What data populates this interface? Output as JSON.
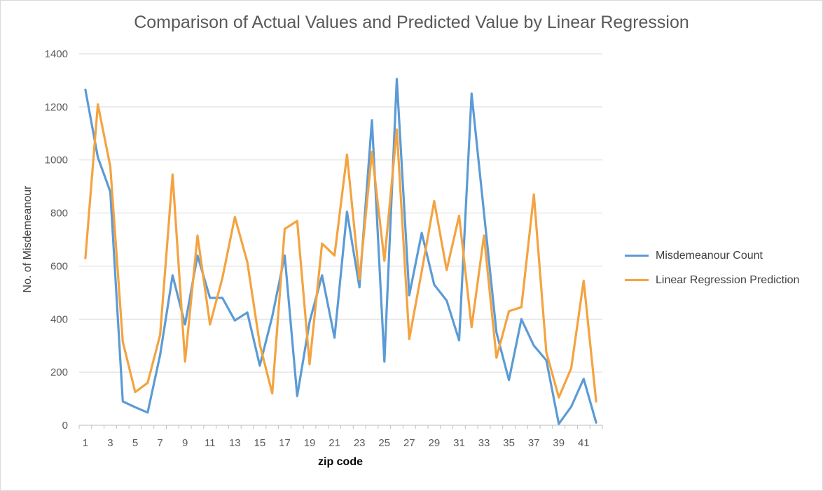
{
  "chart_data": {
    "type": "line",
    "title": "Comparison of Actual Values and Predicted Value by Linear Regression",
    "xlabel": "zip code",
    "ylabel": "No. of Misdemeanour",
    "ylim": [
      0,
      1400
    ],
    "yticks": [
      "0",
      "200",
      "400",
      "600",
      "800",
      "1000",
      "1200",
      "1400"
    ],
    "xticks": [
      "1",
      "3",
      "5",
      "7",
      "9",
      "11",
      "13",
      "15",
      "17",
      "19",
      "21",
      "23",
      "25",
      "27",
      "29",
      "31",
      "33",
      "35",
      "37",
      "39",
      "41"
    ],
    "x": [
      1,
      2,
      3,
      4,
      5,
      6,
      7,
      8,
      9,
      10,
      11,
      12,
      13,
      14,
      15,
      16,
      17,
      18,
      19,
      20,
      21,
      22,
      23,
      24,
      25,
      26,
      27,
      28,
      29,
      30,
      31,
      32,
      33,
      34,
      35,
      36,
      37,
      38,
      39,
      40,
      41,
      42
    ],
    "grid": true,
    "legend_position": "right",
    "series": [
      {
        "name": "Misdemeanour Count",
        "color": "#5B9BD5",
        "values": [
          1265,
          1010,
          880,
          90,
          68,
          48,
          265,
          565,
          380,
          640,
          480,
          480,
          395,
          425,
          225,
          410,
          640,
          110,
          390,
          565,
          330,
          805,
          520,
          1150,
          240,
          1305,
          490,
          725,
          530,
          470,
          320,
          1250,
          800,
          350,
          170,
          400,
          300,
          245,
          5,
          70,
          175,
          10
        ]
      },
      {
        "name": "Linear Regression Prediction",
        "color": "#F4A340",
        "values": [
          630,
          1210,
          975,
          315,
          125,
          160,
          340,
          945,
          240,
          715,
          380,
          555,
          785,
          615,
          305,
          120,
          740,
          770,
          230,
          685,
          640,
          1020,
          550,
          1030,
          620,
          1115,
          325,
          580,
          845,
          585,
          790,
          370,
          715,
          255,
          430,
          445,
          870,
          275,
          105,
          215,
          545,
          90
        ]
      }
    ]
  }
}
